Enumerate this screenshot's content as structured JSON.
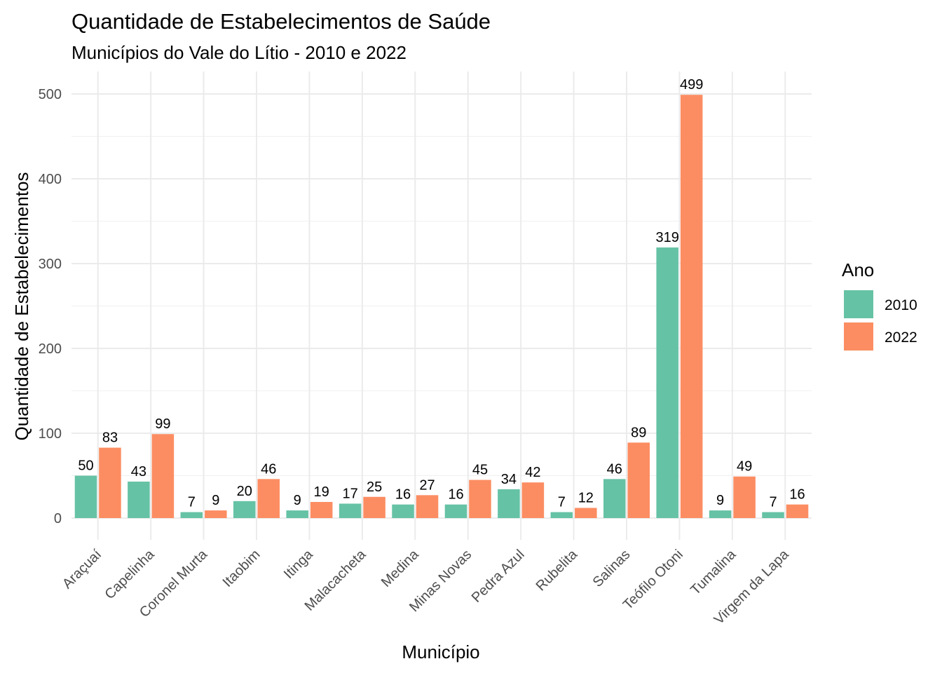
{
  "chart_data": {
    "type": "bar",
    "title": "Quantidade de Estabelecimentos de Saúde",
    "subtitle": "Municípios do Vale do Lítio - 2010 e 2022",
    "xlabel": "Município",
    "ylabel": "Quantidade de Estabelecimentos",
    "ylim": [
      0,
      525
    ],
    "yticks": [
      0,
      100,
      200,
      300,
      400,
      500
    ],
    "grid": true,
    "legend": {
      "title": "Ano",
      "position": "right"
    },
    "categories": [
      "Araçuaí",
      "Capelinha",
      "Coronel Murta",
      "Itaobim",
      "Itinga",
      "Malacacheta",
      "Medina",
      "Minas Novas",
      "Pedra Azul",
      "Rubelita",
      "Salinas",
      "Teófilo Otoni",
      "Tumalina",
      "Virgem da Lapa"
    ],
    "series": [
      {
        "name": "2010",
        "color": "#66c2a5",
        "values": [
          50,
          43,
          7,
          20,
          9,
          17,
          16,
          16,
          34,
          7,
          46,
          319,
          9,
          7
        ]
      },
      {
        "name": "2022",
        "color": "#fc8d62",
        "values": [
          83,
          99,
          9,
          46,
          19,
          25,
          27,
          45,
          42,
          12,
          89,
          499,
          49,
          16
        ]
      }
    ]
  }
}
